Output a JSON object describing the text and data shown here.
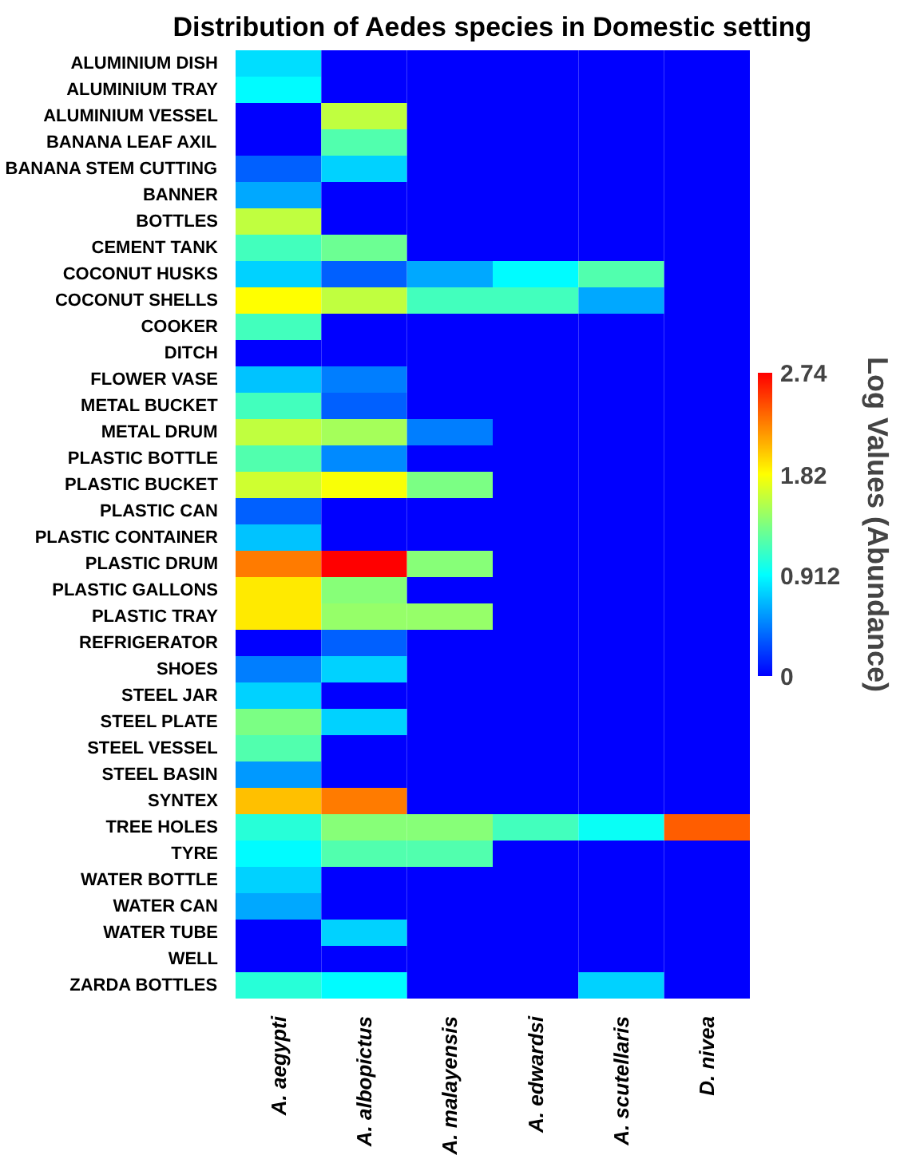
{
  "chart_data": {
    "type": "heatmap",
    "title": "Distribution of Aedes species in Domestic setting",
    "clabel": "Log Values (Abundance)",
    "categories": [
      "A. aegypti",
      "A. albopictus",
      "A. malayensis",
      "A. edwardsi",
      "A. scutellaris",
      "D. nivea"
    ],
    "y_categories": [
      "ALUMINIUM DISH",
      "ALUMINIUM TRAY",
      "ALUMINIUM VESSEL",
      "BANANA LEAF AXIL",
      "BANANA STEM CUTTING",
      "BANNER",
      "BOTTLES",
      "CEMENT TANK",
      "COCONUT HUSKS",
      "COCONUT SHELLS",
      "COOKER",
      "DITCH",
      "FLOWER VASE",
      "METAL BUCKET",
      "METAL DRUM",
      "PLASTIC BOTTLE",
      "PLASTIC BUCKET",
      "PLASTIC CAN",
      "PLASTIC CONTAINER",
      "PLASTIC DRUM",
      "PLASTIC GALLONS",
      "PLASTIC TRAY",
      "REFRIGERATOR",
      "SHOES",
      "STEEL JAR",
      "STEEL PLATE",
      "STEEL VESSEL",
      "STEEL BASIN",
      "SYNTEX",
      "TREE HOLES",
      "TYRE",
      "WATER BOTTLE",
      "WATER CAN",
      "WATER TUBE",
      "WELL",
      "ZARDA BOTTLES"
    ],
    "cells": [
      [
        0.8,
        0,
        0,
        0,
        0,
        0
      ],
      [
        0.9,
        0,
        0,
        0,
        0,
        0
      ],
      [
        0,
        1.6,
        0,
        0,
        0,
        0
      ],
      [
        0,
        1.2,
        0,
        0,
        0,
        0
      ],
      [
        0.35,
        0.75,
        0,
        0,
        0,
        0
      ],
      [
        0.6,
        0,
        0,
        0,
        0,
        0
      ],
      [
        1.6,
        0,
        0,
        0,
        0,
        0
      ],
      [
        1.15,
        1.3,
        0,
        0,
        0,
        0
      ],
      [
        0.75,
        0.35,
        0.6,
        0.9,
        1.2,
        0
      ],
      [
        1.82,
        1.6,
        1.15,
        1.15,
        0.6,
        0
      ],
      [
        1.15,
        0,
        0,
        0,
        0,
        0
      ],
      [
        0,
        0,
        0,
        0,
        0,
        0
      ],
      [
        0.7,
        0.45,
        0,
        0,
        0,
        0
      ],
      [
        1.15,
        0.35,
        0,
        0,
        0,
        0
      ],
      [
        1.6,
        1.5,
        0.45,
        0,
        0,
        0
      ],
      [
        1.2,
        0.5,
        0,
        0,
        0,
        0
      ],
      [
        1.65,
        1.8,
        1.35,
        0,
        0,
        0
      ],
      [
        0.35,
        0,
        0,
        0,
        0,
        0
      ],
      [
        0.7,
        0,
        0,
        0,
        0,
        0
      ],
      [
        2.3,
        2.74,
        1.4,
        0,
        0,
        0
      ],
      [
        1.9,
        1.4,
        0,
        0,
        0,
        0
      ],
      [
        1.9,
        1.45,
        1.45,
        0,
        0,
        0
      ],
      [
        0,
        0.35,
        0,
        0,
        0,
        0
      ],
      [
        0.45,
        0.75,
        0,
        0,
        0,
        0
      ],
      [
        0.75,
        0,
        0,
        0,
        0,
        0
      ],
      [
        1.35,
        0.75,
        0,
        0,
        0,
        0
      ],
      [
        1.2,
        0,
        0,
        0,
        0,
        0
      ],
      [
        0.55,
        0,
        0,
        0,
        0,
        0
      ],
      [
        2.05,
        2.3,
        0,
        0,
        0,
        0
      ],
      [
        1.05,
        1.4,
        1.4,
        1.15,
        0.95,
        2.4
      ],
      [
        0.9,
        1.2,
        1.2,
        0,
        0,
        0
      ],
      [
        0.75,
        0,
        0,
        0,
        0,
        0
      ],
      [
        0.6,
        0,
        0,
        0,
        0,
        0
      ],
      [
        0,
        0.75,
        0,
        0,
        0,
        0
      ],
      [
        0,
        0,
        0,
        0,
        0,
        0
      ],
      [
        1.05,
        0.9,
        0,
        0,
        0.75,
        0
      ]
    ],
    "clim": [
      0,
      2.74
    ],
    "cticks": [
      0,
      0.912,
      1.82,
      2.74
    ]
  }
}
